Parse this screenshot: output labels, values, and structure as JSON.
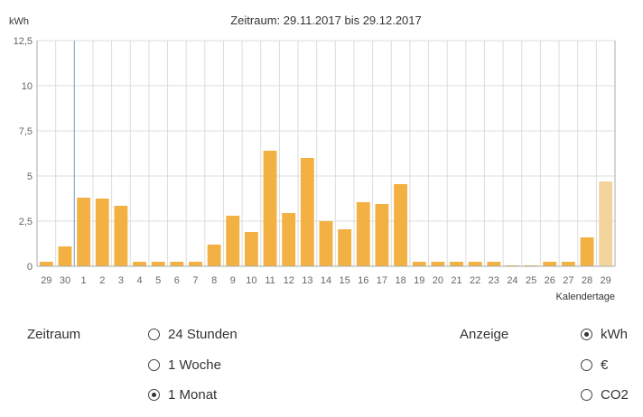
{
  "colors": {
    "bar": "#f4b143",
    "bar_partial": "#f4d49e",
    "grid": "#dddddd",
    "axis": "#aaaaaa",
    "tick_label": "#666666",
    "month_divider": "#7fa6c8"
  },
  "chart_data": {
    "type": "bar",
    "title": "Zeitraum: 29.11.2017 bis 29.12.2017",
    "ylabel": "kWh",
    "xlabel": "Kalendertage",
    "ylim": [
      0,
      12.5
    ],
    "yticks": [
      "0",
      "2,5",
      "5",
      "7,5",
      "10",
      "12,5"
    ],
    "grid": true,
    "categories": [
      "29",
      "30",
      "1",
      "2",
      "3",
      "4",
      "5",
      "6",
      "7",
      "8",
      "9",
      "10",
      "11",
      "12",
      "13",
      "14",
      "15",
      "16",
      "17",
      "18",
      "19",
      "20",
      "21",
      "22",
      "23",
      "24",
      "25",
      "26",
      "27",
      "28",
      "29"
    ],
    "values": [
      0.25,
      1.1,
      3.8,
      3.75,
      3.35,
      0.25,
      0.25,
      0.25,
      0.25,
      1.2,
      2.8,
      1.9,
      6.4,
      2.95,
      6.0,
      2.5,
      2.05,
      3.55,
      3.45,
      4.55,
      0.25,
      0.25,
      0.25,
      0.25,
      0.25,
      0.05,
      0.05,
      0.25,
      0.25,
      1.6,
      4.7
    ]
  },
  "controls": {
    "zeitraum": {
      "label": "Zeitraum",
      "options": [
        "24 Stunden",
        "1 Woche",
        "1 Monat"
      ],
      "selected": 2
    },
    "anzeige": {
      "label": "Anzeige",
      "options": [
        "kWh",
        "€",
        "CO2"
      ],
      "selected": 0
    }
  }
}
